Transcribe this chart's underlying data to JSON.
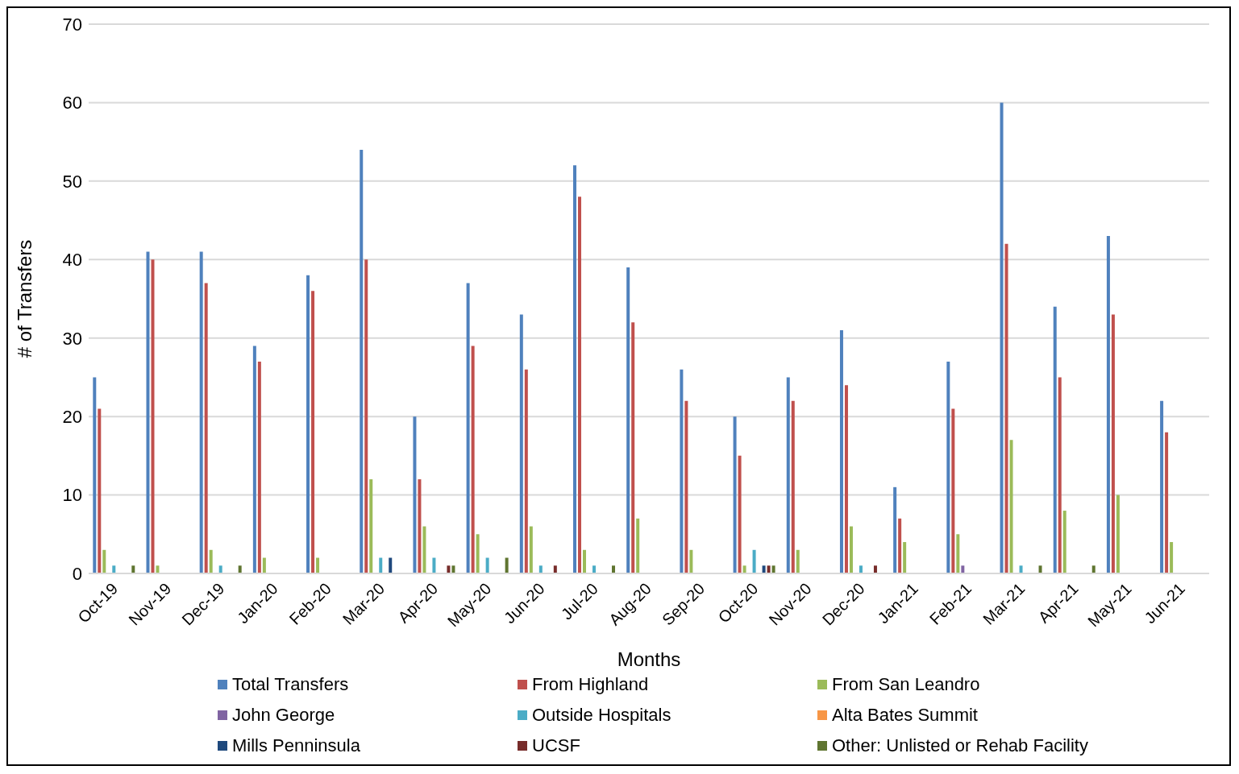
{
  "chart_data": {
    "type": "bar",
    "xlabel": "Months",
    "ylabel": "# of Transfers",
    "categories": [
      "Oct-19",
      "Nov-19",
      "Dec-19",
      "Jan-20",
      "Feb-20",
      "Mar-20",
      "Apr-20",
      "May-20",
      "Jun-20",
      "Jul-20",
      "Aug-20",
      "Sep-20",
      "Oct-20",
      "Nov-20",
      "Dec-20",
      "Jan-21",
      "Feb-21",
      "Mar-21",
      "Apr-21",
      "May-21",
      "Jun-21"
    ],
    "series": [
      {
        "name": "Total Transfers",
        "color": "#4f81bd",
        "values": [
          25,
          41,
          41,
          29,
          38,
          54,
          20,
          37,
          33,
          52,
          39,
          26,
          20,
          25,
          31,
          11,
          27,
          60,
          34,
          43,
          22
        ]
      },
      {
        "name": "From Highland",
        "color": "#c0504d",
        "values": [
          21,
          40,
          37,
          27,
          36,
          40,
          12,
          29,
          26,
          48,
          32,
          22,
          15,
          22,
          24,
          7,
          21,
          42,
          25,
          33,
          18
        ]
      },
      {
        "name": "From San Leandro",
        "color": "#9bbb59",
        "values": [
          3,
          1,
          3,
          2,
          2,
          12,
          6,
          5,
          6,
          3,
          7,
          3,
          1,
          3,
          6,
          4,
          5,
          17,
          8,
          10,
          4
        ]
      },
      {
        "name": "John George",
        "color": "#8064a2",
        "values": [
          0,
          0,
          0,
          0,
          0,
          0,
          0,
          0,
          0,
          0,
          0,
          0,
          0,
          0,
          0,
          0,
          1,
          0,
          0,
          0,
          0
        ]
      },
      {
        "name": "Outside Hospitals",
        "color": "#4bacc6",
        "values": [
          1,
          0,
          1,
          0,
          0,
          2,
          2,
          2,
          1,
          1,
          0,
          0,
          3,
          0,
          1,
          0,
          0,
          1,
          0,
          0,
          0
        ]
      },
      {
        "name": "Alta Bates Summit",
        "color": "#f79646",
        "values": [
          0,
          0,
          0,
          0,
          0,
          0,
          0,
          0,
          0,
          0,
          0,
          0,
          0,
          0,
          0,
          0,
          0,
          0,
          0,
          0,
          0
        ]
      },
      {
        "name": "Mills Penninsula",
        "color": "#1f497d",
        "values": [
          0,
          0,
          0,
          0,
          0,
          2,
          0,
          0,
          0,
          0,
          0,
          0,
          1,
          0,
          0,
          0,
          0,
          0,
          0,
          0,
          0
        ]
      },
      {
        "name": "UCSF",
        "color": "#772c2a",
        "values": [
          0,
          0,
          0,
          0,
          0,
          0,
          1,
          0,
          1,
          0,
          0,
          0,
          1,
          0,
          1,
          0,
          0,
          0,
          0,
          0,
          0
        ]
      },
      {
        "name": "Other: Unlisted or Rehab Facility",
        "color": "#5f7530",
        "values": [
          1,
          0,
          1,
          0,
          0,
          0,
          1,
          2,
          0,
          1,
          0,
          0,
          1,
          0,
          0,
          0,
          0,
          1,
          1,
          0,
          0
        ]
      }
    ],
    "ylim": [
      0,
      70
    ],
    "yticks": [
      0,
      10,
      20,
      30,
      40,
      50,
      60,
      70
    ],
    "grid": "y",
    "legend": "bottom"
  }
}
